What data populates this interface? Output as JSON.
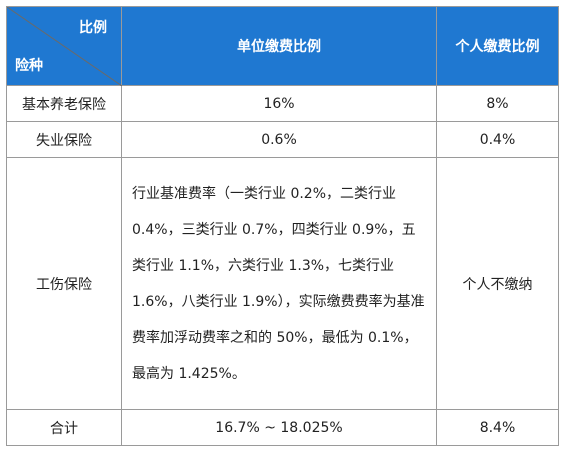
{
  "header": {
    "corner_top": "比例",
    "corner_bottom": "险种",
    "col_unit": "单位缴费比例",
    "col_personal": "个人缴费比例"
  },
  "rows": [
    {
      "type": "基本养老保险",
      "unit": "16%",
      "personal": "8%"
    },
    {
      "type": "失业保险",
      "unit": "0.6%",
      "personal": "0.4%"
    },
    {
      "type": "工伤保险",
      "unit": "行业基准费率（一类行业 0.2%，二类行业 0.4%，三类行业 0.7%，四类行业 0.9%，五类行业 1.1%，六类行业 1.3%，七类行业 1.6%，八类行业 1.9%），实际缴费费率为基准费率加浮动费率之和的 50%，最低为 0.1%，最高为 1.425%。",
      "personal": "个人不缴纳"
    },
    {
      "type": "合计",
      "unit": "16.7% ~ 18.025%",
      "personal": "8.4%"
    }
  ]
}
